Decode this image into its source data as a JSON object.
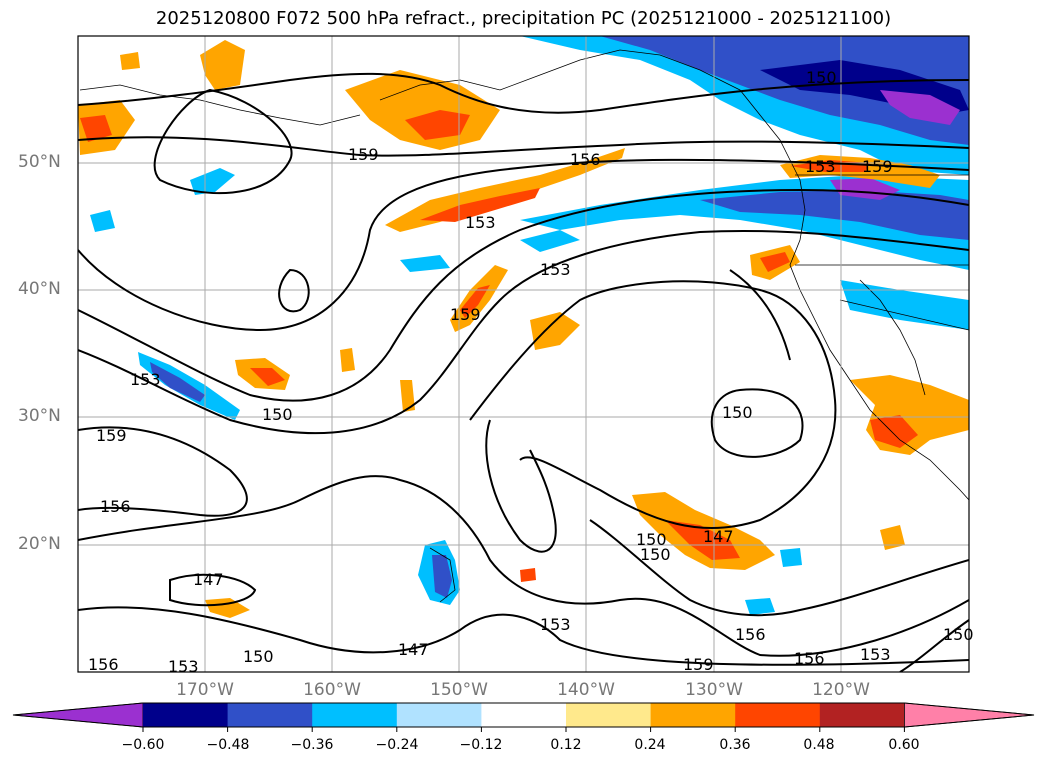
{
  "title": "2025120800 F072 500 hPa refract., precipitation PC (2025121000 - 2025121100)",
  "lat_labels": [
    "50°N",
    "40°N",
    "30°N",
    "20°N"
  ],
  "lon_labels": [
    "170°W",
    "160°W",
    "150°W",
    "140°W",
    "130°W",
    "120°W"
  ],
  "colorbar": {
    "colors": [
      "#9b30d0",
      "#00008b",
      "#3050c8",
      "#00bfff",
      "#b0e2ff",
      "#ffffff",
      "#ffe98c",
      "#ffa500",
      "#ff4500",
      "#b22222",
      "#ff80a8"
    ],
    "tick_labels": [
      "−0.60",
      "−0.48",
      "−0.36",
      "−0.24",
      "−0.12",
      "0.12",
      "0.24",
      "0.36",
      "0.48",
      "0.60"
    ]
  },
  "contour_labels": [
    "159",
    "156",
    "153",
    "159",
    "153",
    "150",
    "153",
    "159",
    "156",
    "150",
    "150",
    "147",
    "150",
    "153",
    "147",
    "147",
    "150",
    "156",
    "153",
    "159",
    "156",
    "153",
    "150",
    "159",
    "156",
    "153",
    "150"
  ]
}
